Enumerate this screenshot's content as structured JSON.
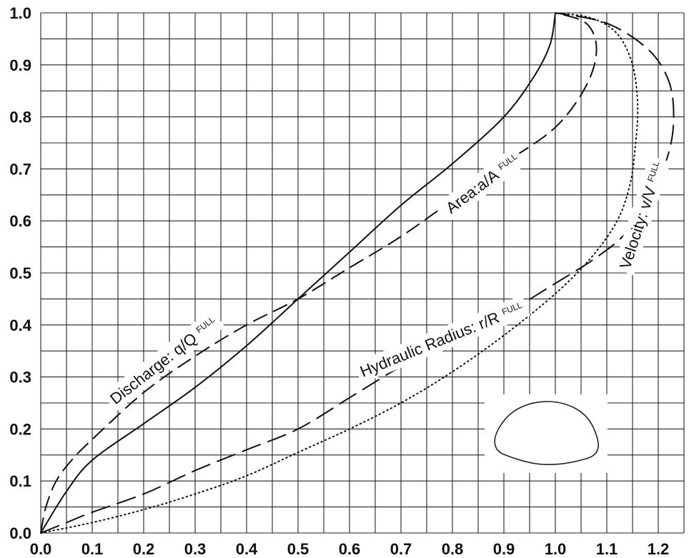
{
  "chart_data": {
    "type": "line",
    "title": "",
    "xlabel": "",
    "ylabel": "",
    "xlim": [
      0,
      1.25
    ],
    "ylim": [
      0,
      1.0
    ],
    "x_ticks": [
      "0.0",
      "0.1",
      "0.2",
      "0.3",
      "0.4",
      "0.5",
      "0.6",
      "0.7",
      "0.8",
      "0.9",
      "1.0",
      "1.1",
      "1.2"
    ],
    "y_ticks": [
      "0.0",
      "0.1",
      "0.2",
      "0.3",
      "0.4",
      "0.5",
      "0.6",
      "0.7",
      "0.8",
      "0.9",
      "1.0"
    ],
    "grid": true,
    "gridlines": {
      "x_step": 0.05,
      "y_step": 0.05
    },
    "series": [
      {
        "key": "area",
        "style": "solid",
        "label_main": "Area:a/A",
        "label_sub": "FULL",
        "points": [
          [
            0,
            0
          ],
          [
            0.05,
            0.08
          ],
          [
            0.1,
            0.14
          ],
          [
            0.2,
            0.21
          ],
          [
            0.3,
            0.28
          ],
          [
            0.4,
            0.36
          ],
          [
            0.5,
            0.45
          ],
          [
            0.6,
            0.54
          ],
          [
            0.7,
            0.63
          ],
          [
            0.8,
            0.71
          ],
          [
            0.9,
            0.8
          ],
          [
            0.96,
            0.88
          ],
          [
            0.99,
            0.94
          ],
          [
            1.0,
            1.0
          ]
        ]
      },
      {
        "key": "discharge",
        "style": "dashed",
        "label_main": "Discharge: q/Q",
        "label_sub": "FULL",
        "points": [
          [
            0,
            0
          ],
          [
            0.01,
            0.05
          ],
          [
            0.03,
            0.1
          ],
          [
            0.06,
            0.14
          ],
          [
            0.1,
            0.18
          ],
          [
            0.2,
            0.27
          ],
          [
            0.3,
            0.34
          ],
          [
            0.4,
            0.4
          ],
          [
            0.5,
            0.45
          ],
          [
            0.6,
            0.51
          ],
          [
            0.7,
            0.57
          ],
          [
            0.8,
            0.64
          ],
          [
            0.9,
            0.71
          ],
          [
            1.0,
            0.78
          ],
          [
            1.06,
            0.86
          ],
          [
            1.08,
            0.93
          ],
          [
            1.06,
            0.98
          ],
          [
            1.0,
            1.0
          ]
        ]
      },
      {
        "key": "hydraulic_radius",
        "style": "longdash",
        "label_main": "Hydraulic Radius: r/R",
        "label_sub": "FULL",
        "points": [
          [
            0,
            0
          ],
          [
            0.05,
            0.02
          ],
          [
            0.1,
            0.04
          ],
          [
            0.2,
            0.075
          ],
          [
            0.3,
            0.12
          ],
          [
            0.4,
            0.16
          ],
          [
            0.5,
            0.2
          ],
          [
            0.6,
            0.26
          ],
          [
            0.7,
            0.32
          ],
          [
            0.8,
            0.37
          ],
          [
            0.9,
            0.42
          ],
          [
            1.0,
            0.48
          ],
          [
            1.08,
            0.53
          ],
          [
            1.14,
            0.58
          ],
          [
            1.19,
            0.66
          ],
          [
            1.22,
            0.73
          ],
          [
            1.23,
            0.8
          ],
          [
            1.22,
            0.87
          ],
          [
            1.18,
            0.93
          ],
          [
            1.1,
            0.98
          ],
          [
            1.0,
            1.0
          ]
        ]
      },
      {
        "key": "velocity",
        "style": "dotted",
        "label_main": "Velocity: v/V",
        "label_sub": "FULL",
        "points": [
          [
            0,
            0
          ],
          [
            0.1,
            0.02
          ],
          [
            0.2,
            0.045
          ],
          [
            0.3,
            0.075
          ],
          [
            0.4,
            0.11
          ],
          [
            0.5,
            0.155
          ],
          [
            0.6,
            0.2
          ],
          [
            0.7,
            0.25
          ],
          [
            0.8,
            0.31
          ],
          [
            0.9,
            0.38
          ],
          [
            1.0,
            0.46
          ],
          [
            1.07,
            0.53
          ],
          [
            1.12,
            0.6
          ],
          [
            1.145,
            0.67
          ],
          [
            1.155,
            0.74
          ],
          [
            1.16,
            0.82
          ],
          [
            1.15,
            0.9
          ],
          [
            1.12,
            0.96
          ],
          [
            1.07,
            0.99
          ],
          [
            1.0,
            1.0
          ]
        ]
      }
    ]
  }
}
